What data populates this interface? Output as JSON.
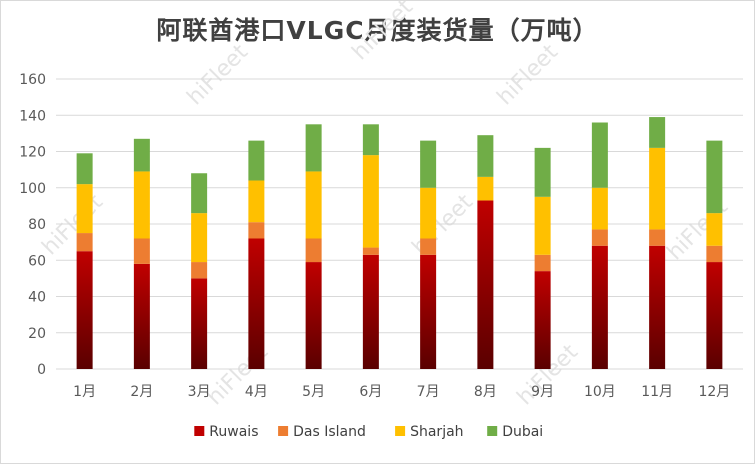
{
  "chart_data": {
    "type": "bar",
    "stacked": true,
    "title": "阿联酋港口VLGC月度装货量（万吨）",
    "categories": [
      "1月",
      "2月",
      "3月",
      "4月",
      "5月",
      "6月",
      "7月",
      "8月",
      "9月",
      "10月",
      "11月",
      "12月"
    ],
    "series": [
      {
        "name": "Ruwais",
        "color": "#c00000",
        "values": [
          65,
          58,
          50,
          72,
          59,
          63,
          63,
          93,
          54,
          68,
          68,
          59
        ]
      },
      {
        "name": "Das Island",
        "color": "#ed7d31",
        "values": [
          10,
          14,
          9,
          9,
          13,
          4,
          9,
          0,
          9,
          9,
          9,
          9
        ]
      },
      {
        "name": "Sharjah",
        "color": "#ffc000",
        "values": [
          27,
          37,
          27,
          23,
          37,
          51,
          28,
          13,
          32,
          23,
          45,
          18
        ]
      },
      {
        "name": "Dubai",
        "color": "#70ad47",
        "values": [
          17,
          18,
          22,
          22,
          26,
          17,
          26,
          23,
          27,
          36,
          17,
          40
        ]
      }
    ],
    "ylim": [
      0,
      160
    ],
    "yticks": [
      0,
      20,
      40,
      60,
      80,
      100,
      120,
      140,
      160
    ],
    "grid": true,
    "legend": "bottom",
    "xlabel": "",
    "ylabel": ""
  },
  "watermark": {
    "text": "hiFleet"
  }
}
